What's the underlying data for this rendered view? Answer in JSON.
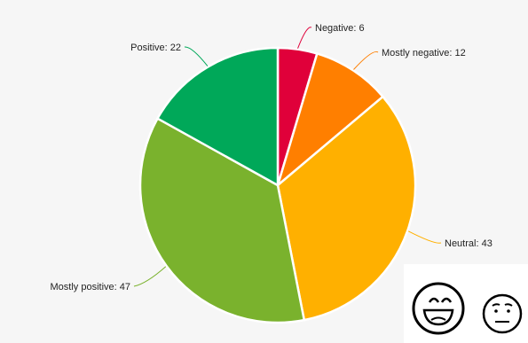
{
  "chart_data": {
    "type": "pie",
    "title": "",
    "slices": [
      {
        "label": "Negative",
        "value": 6,
        "color": "#e0003a"
      },
      {
        "label": "Mostly negative",
        "value": 12,
        "color": "#ff7f00"
      },
      {
        "label": "Neutral",
        "value": 43,
        "color": "#ffb000"
      },
      {
        "label": "Mostly positive",
        "value": 47,
        "color": "#7ab22d"
      },
      {
        "label": "Positive",
        "value": 22,
        "color": "#00a859"
      }
    ],
    "label_format": "{label}: {value}",
    "background_color": "#f6f6f6",
    "slice_border_color": "#ffffff"
  },
  "icons": {
    "smiley_face": "laughing-face-icon",
    "neutral_face": "worried-face-icon"
  }
}
